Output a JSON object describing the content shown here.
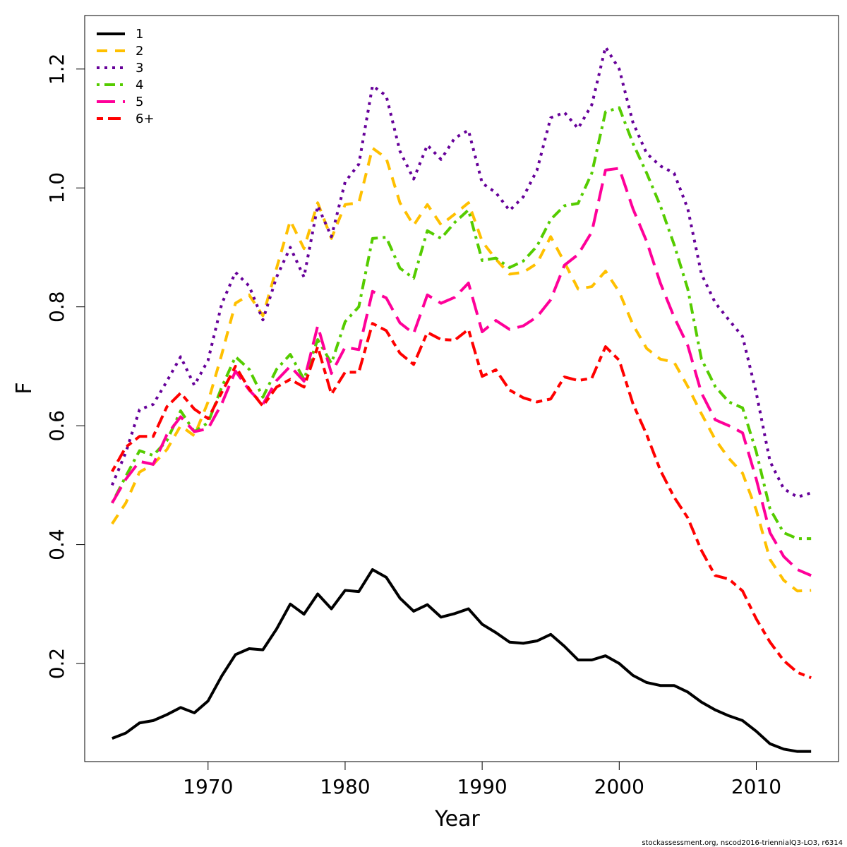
{
  "chart_data": {
    "type": "line",
    "xlabel": "Year",
    "ylabel": "F",
    "xlim": [
      1961,
      2016
    ],
    "ylim": [
      0.035,
      1.29
    ],
    "x_ticks": [
      1970,
      1980,
      1990,
      2000,
      2010
    ],
    "y_ticks": [
      0.2,
      0.4,
      0.6,
      0.8,
      1.0,
      1.2
    ],
    "y_tick_labels": [
      "0.2",
      "0.4",
      "0.6",
      "0.8",
      "1.0",
      "1.2"
    ],
    "grid": false,
    "legend_position": "top-left",
    "footer": "stockassessment.org, nscod2016-triennialQ3-LO3, r6314",
    "x": [
      1963,
      1964,
      1965,
      1966,
      1967,
      1968,
      1969,
      1970,
      1971,
      1972,
      1973,
      1974,
      1975,
      1976,
      1977,
      1978,
      1979,
      1980,
      1981,
      1982,
      1983,
      1984,
      1985,
      1986,
      1987,
      1988,
      1989,
      1990,
      1991,
      1992,
      1993,
      1994,
      1995,
      1996,
      1997,
      1998,
      1999,
      2000,
      2001,
      2002,
      2003,
      2004,
      2005,
      2006,
      2007,
      2008,
      2009,
      2010,
      2011,
      2012,
      2013,
      2014
    ],
    "series": [
      {
        "name": "1",
        "color": "#000000",
        "dash": "solid",
        "values": [
          0.074,
          0.083,
          0.1,
          0.104,
          0.114,
          0.126,
          0.117,
          0.137,
          0.179,
          0.215,
          0.225,
          0.223,
          0.258,
          0.3,
          0.283,
          0.317,
          0.292,
          0.323,
          0.321,
          0.358,
          0.345,
          0.31,
          0.288,
          0.299,
          0.278,
          0.284,
          0.292,
          0.266,
          0.252,
          0.236,
          0.234,
          0.238,
          0.249,
          0.229,
          0.206,
          0.206,
          0.213,
          0.2,
          0.18,
          0.168,
          0.163,
          0.163,
          0.152,
          0.135,
          0.122,
          0.112,
          0.104,
          0.086,
          0.065,
          0.056,
          0.052,
          0.052
        ]
      },
      {
        "name": "2",
        "color": "#ffc000",
        "dash": "dashed",
        "values": [
          0.435,
          0.47,
          0.522,
          0.535,
          0.56,
          0.6,
          0.583,
          0.64,
          0.72,
          0.806,
          0.82,
          0.785,
          0.865,
          0.945,
          0.898,
          0.975,
          0.915,
          0.972,
          0.975,
          1.067,
          1.05,
          0.975,
          0.937,
          0.972,
          0.938,
          0.956,
          0.975,
          0.91,
          0.88,
          0.855,
          0.858,
          0.873,
          0.918,
          0.875,
          0.83,
          0.834,
          0.86,
          0.825,
          0.77,
          0.73,
          0.712,
          0.707,
          0.666,
          0.62,
          0.577,
          0.545,
          0.52,
          0.458,
          0.375,
          0.34,
          0.322,
          0.323
        ]
      },
      {
        "name": "3",
        "color": "#660099",
        "dash": "dotted",
        "values": [
          0.5,
          0.555,
          0.627,
          0.636,
          0.675,
          0.716,
          0.668,
          0.71,
          0.805,
          0.858,
          0.835,
          0.778,
          0.85,
          0.9,
          0.85,
          0.97,
          0.918,
          1.01,
          1.04,
          1.172,
          1.155,
          1.062,
          1.015,
          1.072,
          1.048,
          1.084,
          1.097,
          1.008,
          0.992,
          0.962,
          0.985,
          1.03,
          1.118,
          1.127,
          1.1,
          1.14,
          1.237,
          1.2,
          1.11,
          1.058,
          1.037,
          1.025,
          0.965,
          0.855,
          0.807,
          0.778,
          0.75,
          0.655,
          0.54,
          0.494,
          0.48,
          0.487
        ]
      },
      {
        "name": "4",
        "color": "#55cc00",
        "dash": "dotdash",
        "values": [
          0.47,
          0.515,
          0.558,
          0.55,
          0.575,
          0.625,
          0.59,
          0.605,
          0.665,
          0.716,
          0.695,
          0.648,
          0.695,
          0.72,
          0.678,
          0.745,
          0.705,
          0.775,
          0.8,
          0.915,
          0.917,
          0.865,
          0.848,
          0.928,
          0.915,
          0.942,
          0.963,
          0.878,
          0.882,
          0.866,
          0.877,
          0.902,
          0.947,
          0.97,
          0.974,
          1.025,
          1.128,
          1.135,
          1.075,
          1.025,
          0.97,
          0.905,
          0.83,
          0.712,
          0.666,
          0.64,
          0.63,
          0.556,
          0.46,
          0.42,
          0.41,
          0.41
        ]
      },
      {
        "name": "5",
        "color": "#ff0099",
        "dash": "longdash",
        "values": [
          0.47,
          0.51,
          0.54,
          0.535,
          0.585,
          0.615,
          0.59,
          0.595,
          0.637,
          0.692,
          0.66,
          0.636,
          0.676,
          0.7,
          0.675,
          0.768,
          0.688,
          0.732,
          0.728,
          0.826,
          0.815,
          0.773,
          0.755,
          0.82,
          0.806,
          0.816,
          0.84,
          0.758,
          0.777,
          0.762,
          0.768,
          0.783,
          0.812,
          0.87,
          0.888,
          0.926,
          1.03,
          1.033,
          0.965,
          0.91,
          0.84,
          0.783,
          0.735,
          0.655,
          0.61,
          0.6,
          0.588,
          0.51,
          0.42,
          0.38,
          0.358,
          0.348
        ]
      },
      {
        "name": "6+",
        "color": "#ff0000",
        "dash": "twodash",
        "values": [
          0.523,
          0.564,
          0.582,
          0.582,
          0.632,
          0.655,
          0.628,
          0.612,
          0.656,
          0.7,
          0.662,
          0.633,
          0.665,
          0.678,
          0.665,
          0.733,
          0.653,
          0.69,
          0.69,
          0.772,
          0.76,
          0.722,
          0.703,
          0.757,
          0.745,
          0.744,
          0.762,
          0.683,
          0.694,
          0.66,
          0.647,
          0.64,
          0.645,
          0.682,
          0.676,
          0.68,
          0.733,
          0.71,
          0.637,
          0.585,
          0.525,
          0.48,
          0.445,
          0.39,
          0.348,
          0.342,
          0.322,
          0.275,
          0.236,
          0.205,
          0.185,
          0.176
        ]
      }
    ]
  }
}
